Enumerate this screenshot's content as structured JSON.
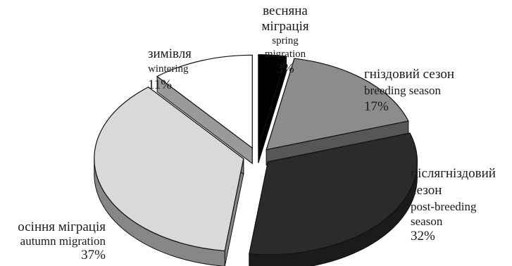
{
  "chart_data": {
    "type": "pie",
    "style": "3d-exploded",
    "slices": [
      {
        "uk": "весняна міграція",
        "en": "spring migration",
        "value": 3,
        "label": "3%",
        "color": "#000000"
      },
      {
        "uk": "гніздовий сезон",
        "en": "breeding season",
        "value": 17,
        "label": "17%",
        "color": "#8c8c8c"
      },
      {
        "uk": "післягніздовий сезон",
        "en": "post-breeding season",
        "value": 32,
        "label": "32%",
        "color": "#2b2b2b"
      },
      {
        "uk": "осіння міграція",
        "en": "autumn migration",
        "value": 37,
        "label": "37%",
        "color": "#d9d9d9"
      },
      {
        "uk": "зимівля",
        "en": "wintering",
        "value": 11,
        "label": "11%",
        "color": "#ffffff"
      }
    ]
  },
  "labels": {
    "spring": {
      "uk1": "весняна",
      "uk2": "міграція",
      "en1": "spring",
      "en2": "migration",
      "pct": "3%"
    },
    "breeding": {
      "uk": "гніздовий сезон",
      "en": "breeding season",
      "pct": "17%"
    },
    "post": {
      "uk1": "післягніздовий",
      "uk2": "сезон",
      "en1": "post-breeding",
      "en2": "season",
      "pct": "32%"
    },
    "autumn": {
      "uk": "осіння міграція",
      "en": "autumn migration",
      "pct": "37%"
    },
    "winter": {
      "uk": "зимівля",
      "en": "wintering",
      "pct": "11%"
    }
  }
}
